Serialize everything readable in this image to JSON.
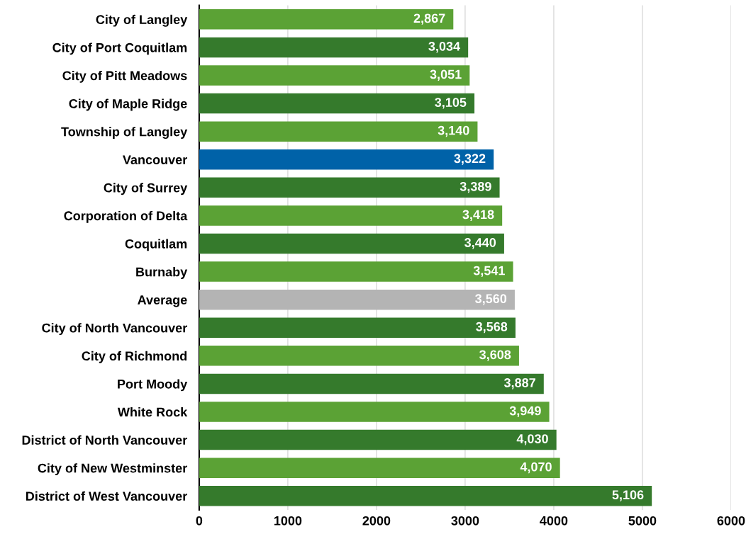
{
  "chart_data": {
    "type": "bar",
    "orientation": "horizontal",
    "categories": [
      "City of Langley",
      "City of Port Coquitlam",
      "City of Pitt Meadows",
      "City of Maple Ridge",
      "Township of Langley",
      "Vancouver",
      "City of Surrey",
      "Corporation of Delta",
      "Coquitlam",
      "Burnaby",
      "Average",
      "City of North Vancouver",
      "City of Richmond",
      "Port Moody",
      "White Rock",
      "District of North Vancouver",
      "City of New Westminster",
      "District of West Vancouver"
    ],
    "values": [
      2867,
      3034,
      3051,
      3105,
      3140,
      3322,
      3389,
      3418,
      3440,
      3541,
      3560,
      3568,
      3608,
      3887,
      3949,
      4030,
      4070,
      5106
    ],
    "value_labels": [
      "2,867",
      "3,034",
      "3,051",
      "3,105",
      "3,140",
      "3,322",
      "3,389",
      "3,418",
      "3,440",
      "3,541",
      "3,560",
      "3,568",
      "3,608",
      "3,887",
      "3,949",
      "4,030",
      "4,070",
      "5,106"
    ],
    "colors": [
      "#5ba235",
      "#357a2c",
      "#5ba235",
      "#357a2c",
      "#5ba235",
      "#0062a8",
      "#357a2c",
      "#5ba235",
      "#357a2c",
      "#5ba235",
      "#b4b4b4",
      "#357a2c",
      "#5ba235",
      "#357a2c",
      "#5ba235",
      "#357a2c",
      "#5ba235",
      "#357a2c"
    ],
    "xlim": [
      0,
      6000
    ],
    "xticks": [
      0,
      1000,
      2000,
      3000,
      4000,
      5000,
      6000
    ],
    "grid": "x",
    "legend": false
  }
}
